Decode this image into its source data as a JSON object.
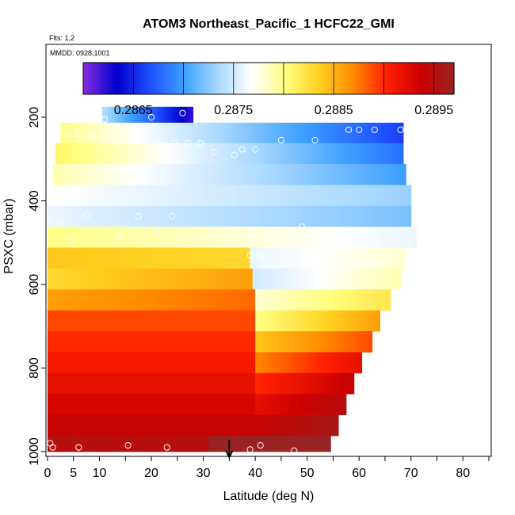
{
  "chart_data": {
    "type": "heatmap",
    "title": "ATOM3 Northeast_Pacific_1 HCFC22_GMI",
    "flts_label": "Flts: 1,2",
    "mmdd_label": "MMDD: 0928,1001",
    "xlabel": "Latitude (deg N)",
    "ylabel": "PSXC (mbar)",
    "x_range": [
      0,
      85
    ],
    "y_range": [
      1000,
      0
    ],
    "x_ticks": [
      "0",
      "5",
      "10",
      "20",
      "30",
      "40",
      "50",
      "60",
      "70",
      "80"
    ],
    "x_tick_values": [
      0,
      5,
      10,
      20,
      30,
      40,
      50,
      60,
      70,
      80
    ],
    "y_ticks": [
      "200",
      "400",
      "600",
      "800",
      "1000"
    ],
    "y_tick_values": [
      200,
      400,
      600,
      800,
      1000
    ],
    "colorbar": {
      "min": 0.286,
      "max": 0.2897,
      "tick_labels": [
        "0.2865",
        "0.2875",
        "0.2885",
        "0.2895"
      ],
      "tick_values": [
        0.2865,
        0.2875,
        0.2885,
        0.2895
      ],
      "colors": [
        "#8a2be2",
        "#0000cd",
        "#1e50ff",
        "#3ca0ff",
        "#a8d8ff",
        "#ffffff",
        "#ffff80",
        "#ffd020",
        "#ff8c00",
        "#ff2000",
        "#cc0000",
        "#992222"
      ]
    },
    "layers": [
      {
        "p_top": 175,
        "p_bot": 225,
        "segments": [
          {
            "x": [
              10.5,
              28
            ],
            "v": [
              0.2874,
              0.2862
            ]
          }
        ]
      },
      {
        "p_top": 213,
        "p_bot": 262,
        "segments": [
          {
            "x": [
              2.5,
              68.5
            ],
            "v": [
              0.288,
              0.2866
            ]
          }
        ]
      },
      {
        "p_top": 262,
        "p_bot": 312,
        "segments": [
          {
            "x": [
              1.5,
              68.5
            ],
            "v": [
              0.2881,
              0.2868
            ]
          }
        ]
      },
      {
        "p_top": 312,
        "p_bot": 362,
        "segments": [
          {
            "x": [
              1.0,
              69.0
            ],
            "v": [
              0.2879,
              0.287
            ]
          }
        ]
      },
      {
        "p_top": 362,
        "p_bot": 412,
        "segments": [
          {
            "x": [
              0.5,
              70.0
            ],
            "v": [
              0.2877,
              0.2873
            ]
          }
        ]
      },
      {
        "p_top": 412,
        "p_bot": 462,
        "segments": [
          {
            "x": [
              0.0,
              70.0
            ],
            "v": [
              0.2876,
              0.2872
            ]
          }
        ]
      },
      {
        "p_top": 462,
        "p_bot": 512,
        "segments": [
          {
            "x": [
              0.0,
              71.0
            ],
            "v": [
              0.288,
              0.2876
            ]
          }
        ]
      },
      {
        "p_top": 512,
        "p_bot": 562,
        "segments": [
          {
            "x": [
              0.0,
              39.0
            ],
            "v": [
              0.2884,
              0.2883
            ]
          },
          {
            "x": [
              39.0,
              69.0
            ],
            "v": [
              0.2876,
              0.2878
            ]
          }
        ]
      },
      {
        "p_top": 562,
        "p_bot": 612,
        "segments": [
          {
            "x": [
              0.0,
              39.5
            ],
            "v": [
              0.2883,
              0.2886
            ]
          },
          {
            "x": [
              39.5,
              68.0
            ],
            "v": [
              0.2875,
              0.2879
            ]
          }
        ]
      },
      {
        "p_top": 612,
        "p_bot": 662,
        "segments": [
          {
            "x": [
              0.0,
              40.0
            ],
            "v": [
              0.2886,
              0.2888
            ]
          },
          {
            "x": [
              40.0,
              66.0
            ],
            "v": [
              0.2878,
              0.2882
            ]
          }
        ]
      },
      {
        "p_top": 662,
        "p_bot": 712,
        "segments": [
          {
            "x": [
              0.0,
              40.0
            ],
            "v": [
              0.2889,
              0.2889
            ]
          },
          {
            "x": [
              40.0,
              64.0
            ],
            "v": [
              0.288,
              0.2886
            ]
          }
        ]
      },
      {
        "p_top": 712,
        "p_bot": 762,
        "segments": [
          {
            "x": [
              0.0,
              40.0
            ],
            "v": [
              0.289,
              0.289
            ]
          },
          {
            "x": [
              40.0,
              62.5
            ],
            "v": [
              0.2884,
              0.2889
            ]
          }
        ]
      },
      {
        "p_top": 762,
        "p_bot": 812,
        "segments": [
          {
            "x": [
              0.0,
              40.0
            ],
            "v": [
              0.2891,
              0.2891
            ]
          },
          {
            "x": [
              40.0,
              60.5
            ],
            "v": [
              0.2887,
              0.2892
            ]
          }
        ]
      },
      {
        "p_top": 812,
        "p_bot": 862,
        "segments": [
          {
            "x": [
              0.0,
              40.0
            ],
            "v": [
              0.2892,
              0.2892
            ]
          },
          {
            "x": [
              40.0,
              59.0
            ],
            "v": [
              0.289,
              0.2894
            ]
          }
        ]
      },
      {
        "p_top": 862,
        "p_bot": 912,
        "segments": [
          {
            "x": [
              0.0,
              40.0
            ],
            "v": [
              0.2893,
              0.2893
            ]
          },
          {
            "x": [
              40.0,
              57.5
            ],
            "v": [
              0.2892,
              0.2895
            ]
          }
        ]
      },
      {
        "p_top": 912,
        "p_bot": 962,
        "segments": [
          {
            "x": [
              0.0,
              40.0
            ],
            "v": [
              0.2894,
              0.2894
            ]
          },
          {
            "x": [
              40.0,
              56.0
            ],
            "v": [
              0.2894,
              0.2896
            ]
          }
        ]
      },
      {
        "p_top": 962,
        "p_bot": 1000,
        "segments": [
          {
            "x": [
              0.0,
              31.0
            ],
            "v": [
              0.2895,
              0.2895
            ]
          },
          {
            "x": [
              31.0,
              54.5
            ],
            "v": [
              0.2897,
              0.2897
            ]
          }
        ]
      }
    ],
    "points": [
      [
        11,
        205
      ],
      [
        20,
        200
      ],
      [
        26,
        190
      ],
      [
        29.5,
        202
      ],
      [
        2,
        225
      ],
      [
        4,
        240
      ],
      [
        6,
        240
      ],
      [
        8.5,
        243
      ],
      [
        11,
        243
      ],
      [
        13.5,
        262
      ],
      [
        16,
        262
      ],
      [
        19,
        262
      ],
      [
        21.5,
        262
      ],
      [
        24.5,
        262
      ],
      [
        27,
        262
      ],
      [
        29.5,
        262
      ],
      [
        32,
        283
      ],
      [
        36,
        290
      ],
      [
        37.5,
        277
      ],
      [
        40,
        277
      ],
      [
        45,
        255
      ],
      [
        51.5,
        255
      ],
      [
        58,
        230
      ],
      [
        60,
        230
      ],
      [
        63,
        230
      ],
      [
        68,
        230
      ],
      [
        0,
        450
      ],
      [
        2.5,
        452
      ],
      [
        4.5,
        495
      ],
      [
        7.5,
        435
      ],
      [
        14,
        483
      ],
      [
        17.5,
        437
      ],
      [
        21.5,
        473
      ],
      [
        24,
        437
      ],
      [
        39.5,
        490
      ],
      [
        41,
        535
      ],
      [
        43,
        473
      ],
      [
        46,
        515
      ],
      [
        49,
        462
      ],
      [
        53,
        545
      ],
      [
        55.5,
        515
      ],
      [
        70.5,
        485
      ],
      [
        39,
        530
      ],
      [
        0.5,
        980
      ],
      [
        1,
        990
      ],
      [
        6,
        990
      ],
      [
        15.5,
        985
      ],
      [
        23,
        990
      ],
      [
        39,
        995
      ],
      [
        41,
        985
      ],
      [
        47.5,
        998
      ]
    ],
    "marker_arrow_x": 35
  }
}
